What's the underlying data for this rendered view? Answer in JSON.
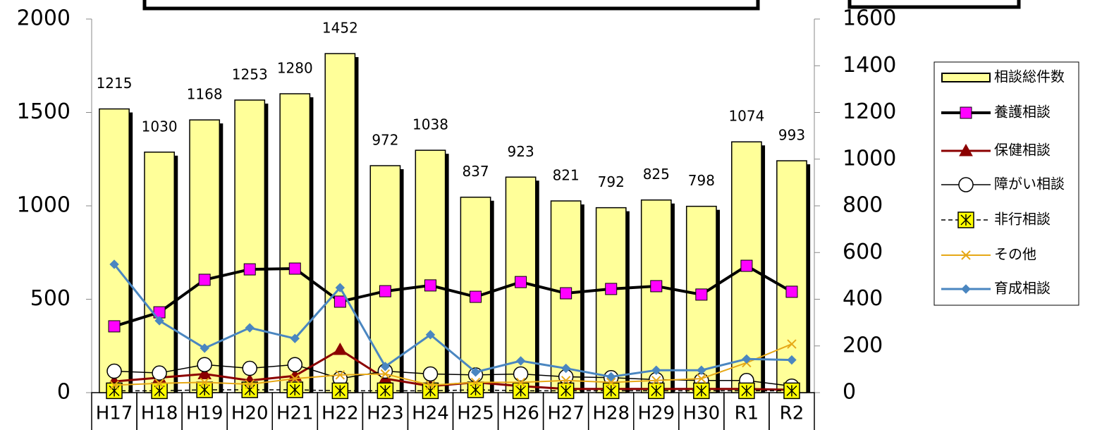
{
  "chart_data": {
    "type": "bar_line",
    "categories": [
      "H17",
      "H18",
      "H19",
      "H20",
      "H21",
      "H22",
      "H23",
      "H24",
      "H25",
      "H26",
      "H27",
      "H28",
      "H29",
      "H30",
      "R1",
      "R2"
    ],
    "ylim": [
      0,
      2000
    ],
    "yticks": [
      0,
      500,
      1000,
      1500,
      2000
    ],
    "y2lim": [
      0,
      1600
    ],
    "y2ticks": [
      0,
      200,
      400,
      600,
      800,
      1000,
      1200,
      1400,
      1600
    ],
    "legend": "right",
    "series": [
      {
        "name": "相談総件数",
        "type": "bar",
        "axis": "y2",
        "color": "#ffff99",
        "values": [
          1215,
          1030,
          1168,
          1253,
          1280,
          1452,
          972,
          1038,
          837,
          923,
          821,
          792,
          825,
          798,
          1074,
          993
        ]
      },
      {
        "name": "養護相談",
        "type": "line",
        "marker": "square",
        "color": "#000000",
        "marker_color": "#ff00ff",
        "values": [
          355,
          430,
          604,
          660,
          664,
          487,
          543,
          574,
          513,
          592,
          532,
          555,
          570,
          525,
          679,
          540
        ]
      },
      {
        "name": "保健相談",
        "type": "line",
        "marker": "triangle",
        "color": "#8b0000",
        "marker_color": "#8b0000",
        "values": [
          60,
          80,
          100,
          65,
          90,
          230,
          75,
          35,
          55,
          35,
          20,
          20,
          20,
          20,
          20,
          15
        ]
      },
      {
        "name": "障がい相談",
        "type": "line",
        "marker": "circle",
        "color": "#000000",
        "marker_color": "#ffffff",
        "values": [
          115,
          105,
          150,
          130,
          150,
          75,
          115,
          100,
          95,
          100,
          85,
          80,
          70,
          65,
          65,
          35
        ]
      },
      {
        "name": "非行相談",
        "type": "line",
        "marker": "asterisk",
        "dashed": true,
        "color": "#000000",
        "marker_color": "#ffff00",
        "values": [
          10,
          10,
          15,
          15,
          15,
          10,
          10,
          10,
          15,
          10,
          10,
          10,
          10,
          10,
          10,
          10
        ]
      },
      {
        "name": "その他",
        "type": "line",
        "marker": "x",
        "color": "#e6a817",
        "marker_color": "#e6a817",
        "values": [
          40,
          50,
          55,
          45,
          75,
          95,
          100,
          40,
          55,
          55,
          65,
          55,
          65,
          75,
          160,
          260
        ]
      },
      {
        "name": "育成相談",
        "type": "line",
        "marker": "diamond",
        "color": "#4a86c0",
        "marker_color": "#4a86c0",
        "values": [
          687,
          385,
          238,
          347,
          290,
          562,
          140,
          310,
          110,
          170,
          130,
          85,
          120,
          120,
          180,
          175
        ]
      }
    ]
  }
}
